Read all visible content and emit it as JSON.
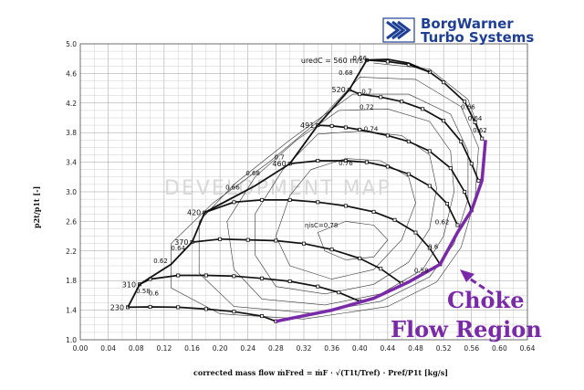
{
  "branding": {
    "line1": "BorgWarner",
    "line2": "Turbo Systems",
    "color": "#1f3f95"
  },
  "watermark": "DEVELOPMENT MAP",
  "annotation": {
    "line1": "Choke",
    "line2": "Flow Region",
    "color": "#7a2aa8"
  },
  "chart_data": {
    "type": "line",
    "title": "",
    "xlabel": "corrected mass flow   ṁFred = ṁF · √(T1t/Tref) · Pref/P1t  [kg/s]",
    "ylabel": "p2t/p1t [-]",
    "xlim": [
      0.0,
      0.64
    ],
    "ylim": [
      1.0,
      5.0
    ],
    "xticks": [
      "0.00",
      "0.04",
      "0.08",
      "0.12",
      "0.16",
      "0.20",
      "0.24",
      "0.28",
      "0.32",
      "0.36",
      "0.40",
      "0.44",
      "0.48",
      "0.52",
      "0.56",
      "0.60",
      "0.64"
    ],
    "yticks": [
      "1.0",
      "1.4",
      "1.8",
      "2.2",
      "2.6",
      "3.0",
      "3.4",
      "3.8",
      "4.2",
      "4.6",
      "5.0"
    ],
    "grid": true,
    "speed_lines": [
      {
        "label": "230",
        "points": [
          [
            0.068,
            1.44
          ],
          [
            0.1,
            1.445
          ],
          [
            0.14,
            1.44
          ],
          [
            0.18,
            1.415
          ],
          [
            0.22,
            1.38
          ],
          [
            0.26,
            1.32
          ],
          [
            0.28,
            1.25
          ]
        ]
      },
      {
        "label": "310",
        "points": [
          [
            0.085,
            1.75
          ],
          [
            0.1,
            1.82
          ],
          [
            0.14,
            1.87
          ],
          [
            0.18,
            1.87
          ],
          [
            0.22,
            1.86
          ],
          [
            0.26,
            1.83
          ],
          [
            0.3,
            1.79
          ],
          [
            0.34,
            1.72
          ],
          [
            0.37,
            1.64
          ],
          [
            0.4,
            1.52
          ]
        ]
      },
      {
        "label": "370",
        "points": [
          [
            0.16,
            2.32
          ],
          [
            0.2,
            2.36
          ],
          [
            0.24,
            2.35
          ],
          [
            0.28,
            2.34
          ],
          [
            0.32,
            2.3
          ],
          [
            0.36,
            2.22
          ],
          [
            0.4,
            2.1
          ],
          [
            0.43,
            1.96
          ],
          [
            0.46,
            1.76
          ]
        ]
      },
      {
        "label": "420",
        "points": [
          [
            0.178,
            2.72
          ],
          [
            0.22,
            2.86
          ],
          [
            0.26,
            2.89
          ],
          [
            0.3,
            2.89
          ],
          [
            0.34,
            2.86
          ],
          [
            0.38,
            2.81
          ],
          [
            0.42,
            2.73
          ],
          [
            0.45,
            2.62
          ],
          [
            0.48,
            2.45
          ],
          [
            0.5,
            2.24
          ],
          [
            0.515,
            2.02
          ]
        ]
      },
      {
        "label": "460",
        "points": [
          [
            0.3,
            3.38
          ],
          [
            0.34,
            3.42
          ],
          [
            0.38,
            3.42
          ],
          [
            0.41,
            3.4
          ],
          [
            0.44,
            3.34
          ],
          [
            0.47,
            3.24
          ],
          [
            0.5,
            3.08
          ],
          [
            0.525,
            2.84
          ],
          [
            0.54,
            2.55
          ]
        ]
      },
      {
        "label": "491",
        "points": [
          [
            0.34,
            3.9
          ],
          [
            0.36,
            3.89
          ],
          [
            0.38,
            3.87
          ],
          [
            0.4,
            3.84
          ],
          [
            0.44,
            3.76
          ],
          [
            0.47,
            3.68
          ],
          [
            0.5,
            3.55
          ],
          [
            0.53,
            3.32
          ],
          [
            0.55,
            3.0
          ],
          [
            0.56,
            2.75
          ]
        ]
      },
      {
        "label": "520",
        "points": [
          [
            0.385,
            4.38
          ],
          [
            0.4,
            4.32
          ],
          [
            0.43,
            4.28
          ],
          [
            0.46,
            4.22
          ],
          [
            0.49,
            4.12
          ],
          [
            0.52,
            3.96
          ],
          [
            0.545,
            3.68
          ],
          [
            0.56,
            3.38
          ],
          [
            0.57,
            3.15
          ]
        ]
      },
      {
        "label": "uredC = 560 m/s",
        "points": [
          [
            0.41,
            4.78
          ],
          [
            0.44,
            4.76
          ],
          [
            0.47,
            4.72
          ],
          [
            0.5,
            4.62
          ],
          [
            0.52,
            4.48
          ],
          [
            0.55,
            4.22
          ],
          [
            0.565,
            3.94
          ],
          [
            0.575,
            3.72
          ]
        ]
      }
    ],
    "surge_line": [
      [
        0.068,
        1.44
      ],
      [
        0.085,
        1.75
      ],
      [
        0.13,
        2.02
      ],
      [
        0.16,
        2.32
      ],
      [
        0.178,
        2.72
      ],
      [
        0.22,
        2.93
      ],
      [
        0.25,
        3.08
      ],
      [
        0.3,
        3.38
      ],
      [
        0.34,
        3.9
      ],
      [
        0.385,
        4.38
      ],
      [
        0.41,
        4.78
      ],
      [
        0.44,
        4.79
      ],
      [
        0.47,
        4.74
      ],
      [
        0.5,
        4.62
      ]
    ],
    "choke_line": [
      [
        0.28,
        1.25
      ],
      [
        0.36,
        1.4
      ],
      [
        0.42,
        1.56
      ],
      [
        0.47,
        1.78
      ],
      [
        0.515,
        2.02
      ],
      [
        0.54,
        2.45
      ],
      [
        0.56,
        2.75
      ],
      [
        0.575,
        3.15
      ],
      [
        0.58,
        3.7
      ]
    ],
    "efficiency_labels": [
      {
        "text": "0.58",
        "x": 0.488,
        "y": 1.91
      },
      {
        "text": "0.6",
        "x": 0.505,
        "y": 2.23
      },
      {
        "text": "0.62",
        "x": 0.518,
        "y": 2.56
      },
      {
        "text": "0.62",
        "x": 0.572,
        "y": 3.8
      },
      {
        "text": "0.64",
        "x": 0.565,
        "y": 3.96
      },
      {
        "text": "0.66",
        "x": 0.555,
        "y": 4.12
      },
      {
        "text": "0.66",
        "x": 0.4,
        "y": 4.78
      },
      {
        "text": "0.68",
        "x": 0.38,
        "y": 4.58
      },
      {
        "text": "0.7",
        "x": 0.41,
        "y": 4.33
      },
      {
        "text": "0.72",
        "x": 0.41,
        "y": 4.12
      },
      {
        "text": "0.74",
        "x": 0.416,
        "y": 3.82
      },
      {
        "text": "0.76",
        "x": 0.38,
        "y": 3.36
      },
      {
        "text": "ηisC=0.78",
        "x": 0.345,
        "y": 2.52
      },
      {
        "text": "0.7",
        "x": 0.285,
        "y": 3.44
      },
      {
        "text": "0.68",
        "x": 0.247,
        "y": 3.22
      },
      {
        "text": "0.66",
        "x": 0.218,
        "y": 3.03
      },
      {
        "text": "0.64",
        "x": 0.14,
        "y": 2.21
      },
      {
        "text": "0.62",
        "x": 0.115,
        "y": 2.04
      },
      {
        "text": "0.6",
        "x": 0.105,
        "y": 1.6
      },
      {
        "text": "0.58",
        "x": 0.09,
        "y": 1.63
      }
    ],
    "efficiency_islands": [
      {
        "points": [
          [
            0.34,
            2.45
          ],
          [
            0.38,
            2.6
          ],
          [
            0.42,
            2.55
          ],
          [
            0.44,
            2.35
          ],
          [
            0.42,
            2.12
          ],
          [
            0.38,
            2.08
          ],
          [
            0.35,
            2.2
          ],
          [
            0.34,
            2.45
          ]
        ]
      },
      {
        "points": [
          [
            0.33,
            3.3
          ],
          [
            0.38,
            3.45
          ],
          [
            0.43,
            3.42
          ],
          [
            0.47,
            3.2
          ],
          [
            0.48,
            2.85
          ],
          [
            0.46,
            2.35
          ],
          [
            0.42,
            1.95
          ],
          [
            0.36,
            1.82
          ],
          [
            0.3,
            2.0
          ],
          [
            0.28,
            2.4
          ],
          [
            0.3,
            2.95
          ],
          [
            0.33,
            3.3
          ]
        ]
      },
      {
        "points": [
          [
            0.34,
            3.78
          ],
          [
            0.4,
            3.82
          ],
          [
            0.46,
            3.76
          ],
          [
            0.5,
            3.5
          ],
          [
            0.51,
            3.05
          ],
          [
            0.5,
            2.5
          ],
          [
            0.47,
            2.05
          ],
          [
            0.42,
            1.75
          ],
          [
            0.35,
            1.62
          ],
          [
            0.28,
            1.72
          ],
          [
            0.25,
            2.15
          ],
          [
            0.25,
            2.7
          ],
          [
            0.29,
            3.3
          ],
          [
            0.34,
            3.78
          ]
        ]
      },
      {
        "points": [
          [
            0.37,
            4.1
          ],
          [
            0.44,
            4.12
          ],
          [
            0.5,
            3.95
          ],
          [
            0.53,
            3.55
          ],
          [
            0.535,
            3.0
          ],
          [
            0.52,
            2.4
          ],
          [
            0.49,
            1.95
          ],
          [
            0.43,
            1.62
          ],
          [
            0.35,
            1.47
          ],
          [
            0.26,
            1.55
          ],
          [
            0.22,
            1.95
          ],
          [
            0.21,
            2.6
          ],
          [
            0.25,
            3.2
          ],
          [
            0.31,
            3.7
          ],
          [
            0.37,
            4.1
          ]
        ]
      },
      {
        "points": [
          [
            0.39,
            4.32
          ],
          [
            0.47,
            4.32
          ],
          [
            0.53,
            4.05
          ],
          [
            0.555,
            3.55
          ],
          [
            0.555,
            2.9
          ],
          [
            0.535,
            2.3
          ],
          [
            0.5,
            1.85
          ],
          [
            0.43,
            1.52
          ],
          [
            0.33,
            1.36
          ],
          [
            0.22,
            1.45
          ],
          [
            0.17,
            1.9
          ],
          [
            0.17,
            2.6
          ],
          [
            0.22,
            3.1
          ],
          [
            0.3,
            3.7
          ],
          [
            0.39,
            4.32
          ]
        ]
      },
      {
        "points": [
          [
            0.4,
            4.55
          ],
          [
            0.48,
            4.52
          ],
          [
            0.545,
            4.15
          ],
          [
            0.57,
            3.6
          ],
          [
            0.565,
            2.9
          ],
          [
            0.545,
            2.25
          ],
          [
            0.51,
            1.78
          ],
          [
            0.44,
            1.45
          ],
          [
            0.32,
            1.28
          ],
          [
            0.2,
            1.35
          ],
          [
            0.13,
            1.7
          ],
          [
            0.13,
            2.3
          ],
          [
            0.19,
            2.85
          ],
          [
            0.27,
            3.4
          ],
          [
            0.34,
            3.95
          ],
          [
            0.4,
            4.55
          ]
        ]
      },
      {
        "points": [
          [
            0.42,
            4.74
          ],
          [
            0.5,
            4.66
          ],
          [
            0.555,
            4.25
          ],
          [
            0.575,
            3.72
          ]
        ]
      }
    ]
  }
}
